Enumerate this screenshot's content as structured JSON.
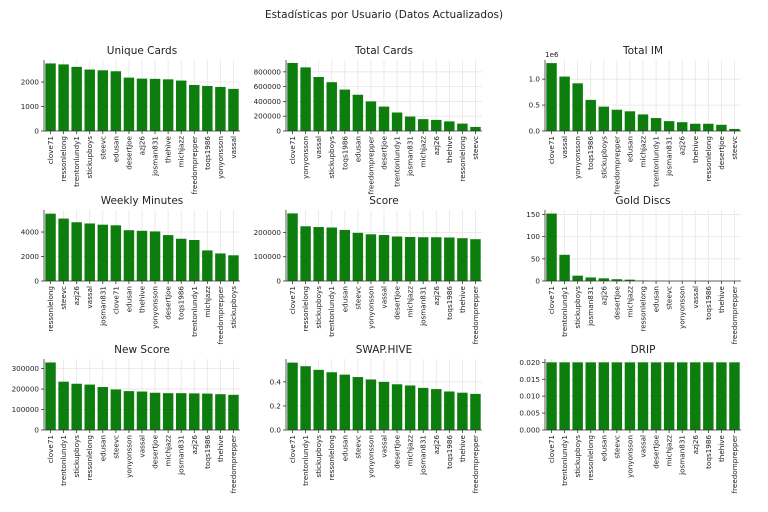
{
  "suptitle": "Estadísticas por Usuario (Datos Actualizados)",
  "chart_data": [
    {
      "type": "bar",
      "title": "Unique Cards",
      "categories": [
        "clove71",
        "ressonlelong",
        "trentonlundy1",
        "stickupboys",
        "steevc",
        "edusan",
        "desertjoe",
        "azj26",
        "josman831",
        "thehive",
        "michjazz",
        "freedomprepper",
        "toqs1986",
        "yonyonsson",
        "vassal"
      ],
      "values": [
        2760,
        2720,
        2620,
        2510,
        2480,
        2440,
        2180,
        2140,
        2130,
        2110,
        2060,
        1880,
        1840,
        1800,
        1720
      ],
      "yticks": [
        0,
        1000,
        2000
      ],
      "ytick_labels": [
        "0",
        "1000",
        "2000"
      ],
      "ylim": [
        0,
        2900
      ],
      "multiplier": ""
    },
    {
      "type": "bar",
      "title": "Total Cards",
      "categories": [
        "clove71",
        "yonyonsson",
        "vassal",
        "stickupboys",
        "toqs1986",
        "edusan",
        "freedomprepper",
        "desertjoe",
        "trentonlundy1",
        "josman831",
        "michjazz",
        "azj26",
        "thehive",
        "ressonlelong",
        "steevc"
      ],
      "values": [
        920000,
        860000,
        730000,
        660000,
        560000,
        490000,
        400000,
        330000,
        250000,
        195000,
        160000,
        150000,
        130000,
        100000,
        55000
      ],
      "yticks": [
        0,
        200000,
        400000,
        600000,
        800000
      ],
      "ytick_labels": [
        "0",
        "200000",
        "400000",
        "600000",
        "800000"
      ],
      "ylim": [
        0,
        960000
      ],
      "multiplier": ""
    },
    {
      "type": "bar",
      "title": "Total IM",
      "categories": [
        "clove71",
        "vassal",
        "yonyonsson",
        "toqs1986",
        "stickupboys",
        "freedomprepper",
        "edusan",
        "michjazz",
        "trentonlundy1",
        "josman831",
        "azj26",
        "thehive",
        "ressonlelong",
        "desertjoe",
        "steevc"
      ],
      "values": [
        1.31,
        1.05,
        0.92,
        0.6,
        0.47,
        0.41,
        0.38,
        0.32,
        0.25,
        0.19,
        0.17,
        0.14,
        0.14,
        0.12,
        0.04
      ],
      "yticks": [
        0,
        0.5,
        1.0
      ],
      "ytick_labels": [
        "0.0",
        "0.5",
        "1.0"
      ],
      "ylim": [
        0,
        1.37
      ],
      "multiplier": "1e6"
    },
    {
      "type": "bar",
      "title": "Weekly Minutes",
      "categories": [
        "ressonlelong",
        "steevc",
        "azj26",
        "vassal",
        "josman831",
        "clove71",
        "edusan",
        "thehive",
        "yonyonsson",
        "desertjoe",
        "toqs1986",
        "trentonlundy1",
        "michjazz",
        "freedomprepper",
        "stickupboys"
      ],
      "values": [
        5500,
        5100,
        4800,
        4700,
        4600,
        4550,
        4150,
        4100,
        4050,
        3750,
        3450,
        3350,
        2500,
        2250,
        2100
      ],
      "yticks": [
        0,
        2000,
        4000
      ],
      "ytick_labels": [
        "0",
        "2000",
        "4000"
      ],
      "ylim": [
        0,
        5800
      ],
      "multiplier": ""
    },
    {
      "type": "bar",
      "title": "Score",
      "categories": [
        "clove71",
        "ressonlelong",
        "stickupboys",
        "trentonlundy1",
        "edusan",
        "steevc",
        "yonyonsson",
        "vassal",
        "desertjoe",
        "michjazz",
        "josman831",
        "azj26",
        "toqs1986",
        "thehive",
        "freedomprepper"
      ],
      "values": [
        278000,
        225000,
        222000,
        220000,
        210000,
        198000,
        192000,
        189000,
        183000,
        181000,
        180000,
        180000,
        179000,
        176000,
        172000
      ],
      "yticks": [
        0,
        100000,
        200000
      ],
      "ytick_labels": [
        "0",
        "100000",
        "200000"
      ],
      "ylim": [
        0,
        292000
      ],
      "multiplier": ""
    },
    {
      "type": "bar",
      "title": "Gold Discs",
      "categories": [
        "clove71",
        "trentonlundy1",
        "stickupboys",
        "josman831",
        "azj26",
        "desertjoe",
        "michjazz",
        "ressonlelong",
        "edusan",
        "steevc",
        "yonyonsson",
        "vassal",
        "toqs1986",
        "thehive",
        "freedomprepper"
      ],
      "values": [
        152,
        59,
        12,
        8,
        6,
        4,
        3,
        1,
        0,
        0,
        0,
        0,
        0,
        0,
        0
      ],
      "yticks": [
        0,
        50,
        100,
        150
      ],
      "ytick_labels": [
        "0",
        "50",
        "100",
        "150"
      ],
      "ylim": [
        0,
        160
      ],
      "multiplier": ""
    },
    {
      "type": "bar",
      "title": "New Score",
      "categories": [
        "clove71",
        "trentonlundy1",
        "stickupboys",
        "ressonlelong",
        "edusan",
        "steevc",
        "yonyonsson",
        "vassal",
        "desertjoe",
        "michjazz",
        "josman831",
        "azj26",
        "toqs1986",
        "thehive",
        "freedomprepper"
      ],
      "values": [
        330000,
        236000,
        226000,
        222000,
        210000,
        198000,
        190000,
        188000,
        182000,
        180000,
        180000,
        179000,
        178000,
        175000,
        172000
      ],
      "yticks": [
        0,
        100000,
        200000,
        300000
      ],
      "ytick_labels": [
        "0",
        "100000",
        "200000",
        "300000"
      ],
      "ylim": [
        0,
        347000
      ],
      "multiplier": ""
    },
    {
      "type": "bar",
      "title": "SWAP.HIVE",
      "categories": [
        "clove71",
        "trentonlundy1",
        "stickupboys",
        "ressonlelong",
        "edusan",
        "steevc",
        "yonyonsson",
        "vassal",
        "desertjoe",
        "michjazz",
        "josman831",
        "azj26",
        "toqs1986",
        "thehive",
        "freedomprepper"
      ],
      "values": [
        0.56,
        0.53,
        0.5,
        0.48,
        0.46,
        0.44,
        0.42,
        0.4,
        0.38,
        0.37,
        0.35,
        0.34,
        0.32,
        0.31,
        0.3
      ],
      "yticks": [
        0,
        0.2,
        0.4
      ],
      "ytick_labels": [
        "0.0",
        "0.2",
        "0.4"
      ],
      "ylim": [
        0,
        0.59
      ],
      "multiplier": ""
    },
    {
      "type": "bar",
      "title": "DRIP",
      "categories": [
        "clove71",
        "trentonlundy1",
        "stickupboys",
        "ressonlelong",
        "edusan",
        "steevc",
        "yonyonsson",
        "vassal",
        "desertjoe",
        "michjazz",
        "josman831",
        "azj26",
        "toqs1986",
        "thehive",
        "freedomprepper"
      ],
      "values": [
        0.02,
        0.02,
        0.02,
        0.02,
        0.02,
        0.02,
        0.02,
        0.02,
        0.02,
        0.02,
        0.02,
        0.02,
        0.02,
        0.02,
        0.02
      ],
      "yticks": [
        0,
        0.005,
        0.01,
        0.015,
        0.02
      ],
      "ytick_labels": [
        "0.000",
        "0.005",
        "0.010",
        "0.015",
        "0.020"
      ],
      "ylim": [
        0,
        0.021
      ],
      "multiplier": ""
    }
  ],
  "colors": {
    "bar": "#0d7d0d",
    "grid": "#e6e6e6",
    "axis": "#333333"
  }
}
